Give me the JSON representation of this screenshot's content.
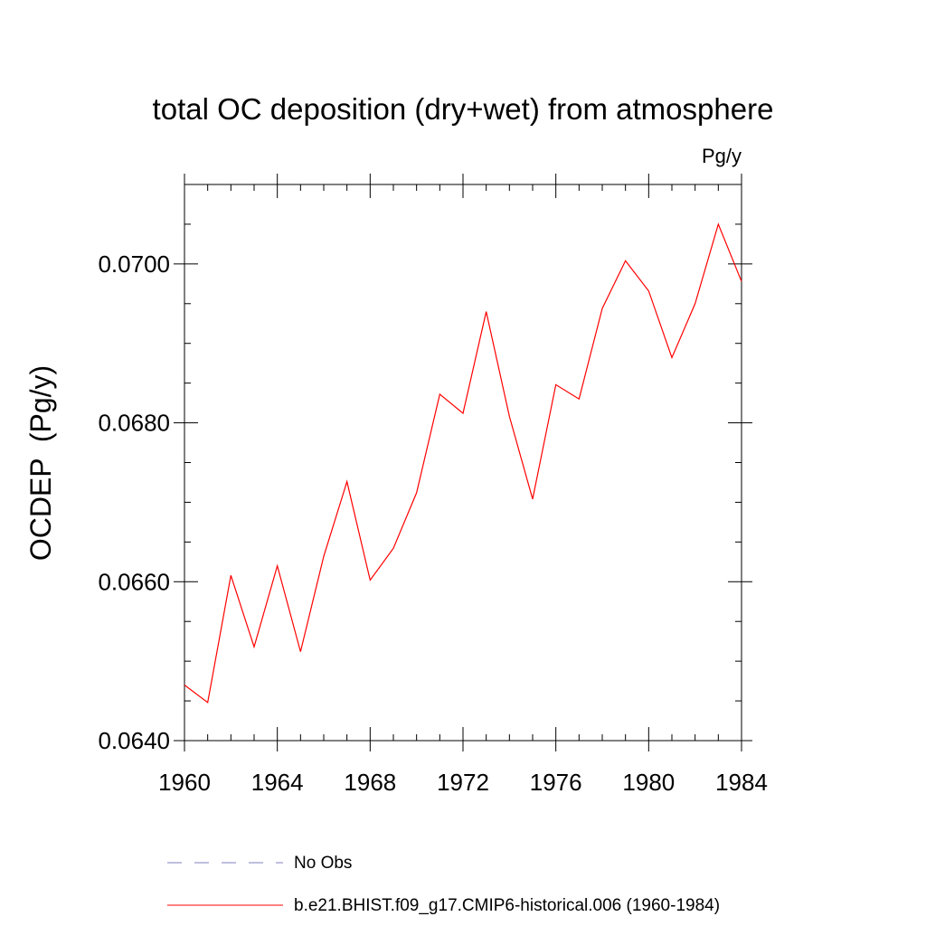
{
  "chart_data": {
    "type": "line",
    "title": "total OC deposition (dry+wet) from atmosphere",
    "units": "Pg/y",
    "ylabel": "OCDEP  (Pg/y)",
    "xlabel": "",
    "xlim": [
      1960,
      1984
    ],
    "ylim": [
      0.064,
      0.071
    ],
    "x_ticks": [
      1960,
      1964,
      1968,
      1972,
      1976,
      1980,
      1984
    ],
    "x_tick_labels": [
      "1960",
      "1964",
      "1968",
      "1972",
      "1976",
      "1980",
      "1984"
    ],
    "y_ticks": [
      0.064,
      0.066,
      0.068,
      0.07
    ],
    "y_tick_labels": [
      "0.0640",
      "0.0660",
      "0.0680",
      "0.0700"
    ],
    "grid": false,
    "x": [
      1960,
      1961,
      1962,
      1963,
      1964,
      1965,
      1966,
      1967,
      1968,
      1969,
      1970,
      1971,
      1972,
      1973,
      1974,
      1975,
      1976,
      1977,
      1978,
      1979,
      1980,
      1981,
      1982,
      1983,
      1984
    ],
    "series": [
      {
        "name": "b.e21.BHIST.f09_g17.CMIP6-historical.006 (1960-1984)",
        "color": "#ff0000",
        "style": "solid",
        "values": [
          0.0647,
          0.06448,
          0.06608,
          0.06518,
          0.0662,
          0.06512,
          0.06632,
          0.06726,
          0.06602,
          0.06642,
          0.06712,
          0.06836,
          0.06812,
          0.0694,
          0.06808,
          0.06704,
          0.06848,
          0.0683,
          0.06944,
          0.07004,
          0.06966,
          0.06882,
          0.0695,
          0.0705,
          0.06978
        ]
      }
    ],
    "legend": {
      "placement": "bottom",
      "entries": [
        {
          "label": "No Obs",
          "color": "#7f7fbf",
          "style": "dashed"
        },
        {
          "label": "b.e21.BHIST.f09_g17.CMIP6-historical.006 (1960-1984)",
          "color": "#ff0000",
          "style": "solid"
        }
      ]
    }
  }
}
